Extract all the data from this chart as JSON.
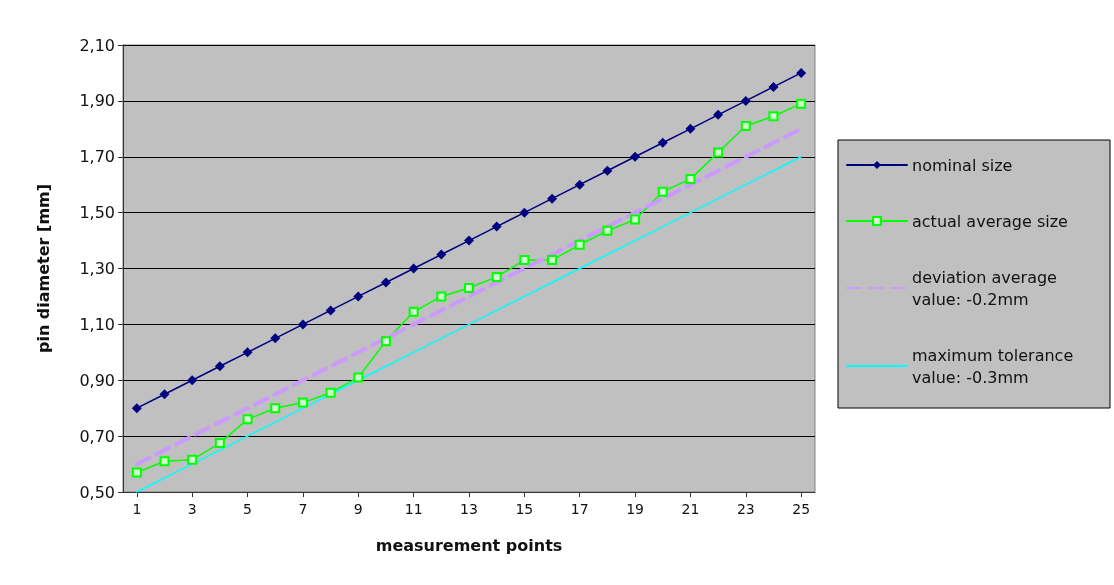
{
  "chart_data": {
    "type": "line",
    "xlabel": "measurement points",
    "ylabel": "pin diameter [mm]",
    "x": [
      1,
      2,
      3,
      4,
      5,
      6,
      7,
      8,
      9,
      10,
      11,
      12,
      13,
      14,
      15,
      16,
      17,
      18,
      19,
      20,
      21,
      22,
      23,
      24,
      25
    ],
    "xlim": [
      0.5,
      25.5
    ],
    "xticks": [
      1,
      3,
      5,
      7,
      9,
      11,
      13,
      15,
      17,
      19,
      21,
      23,
      25
    ],
    "series": [
      {
        "name": "nominal size",
        "color": "#000080",
        "marker": "diamond",
        "line_style": "solid",
        "values": [
          0.8,
          0.85,
          0.9,
          0.95,
          1.0,
          1.05,
          1.1,
          1.15,
          1.2,
          1.25,
          1.3,
          1.35,
          1.4,
          1.45,
          1.5,
          1.55,
          1.6,
          1.65,
          1.7,
          1.75,
          1.8,
          1.85,
          1.9,
          1.95,
          2.0
        ]
      },
      {
        "name": "actual average size",
        "color": "#00ff00",
        "marker": "square",
        "line_style": "solid",
        "values": [
          0.57,
          0.61,
          0.615,
          0.675,
          0.76,
          0.8,
          0.82,
          0.855,
          0.91,
          1.04,
          1.145,
          1.2,
          1.23,
          1.27,
          1.33,
          1.33,
          1.385,
          1.435,
          1.475,
          1.575,
          1.62,
          1.715,
          1.81,
          1.845,
          1.89
        ]
      },
      {
        "name": "deviation average value: -0.2mm",
        "color": "#cc99ff",
        "marker": "none",
        "line_style": "dashed",
        "values": [
          0.6,
          0.65,
          0.7,
          0.75,
          0.8,
          0.85,
          0.9,
          0.95,
          1.0,
          1.05,
          1.1,
          1.15,
          1.2,
          1.25,
          1.3,
          1.35,
          1.4,
          1.45,
          1.5,
          1.55,
          1.6,
          1.65,
          1.7,
          1.75,
          1.8
        ]
      },
      {
        "name": "maximum tolerance value: -0.3mm",
        "color": "#00ffff",
        "marker": "none",
        "line_style": "solid",
        "values": [
          0.5,
          0.55,
          0.6,
          0.65,
          0.7,
          0.75,
          0.8,
          0.85,
          0.9,
          0.95,
          1.0,
          1.05,
          1.1,
          1.15,
          1.2,
          1.25,
          1.3,
          1.35,
          1.4,
          1.45,
          1.5,
          1.55,
          1.6,
          1.65,
          1.7
        ]
      }
    ],
    "ylim": [
      0.5,
      2.1
    ],
    "yticks": [
      {
        "value": 0.5,
        "label": "0,50"
      },
      {
        "value": 0.7,
        "label": "0,70"
      },
      {
        "value": 0.9,
        "label": "0,90"
      },
      {
        "value": 1.1,
        "label": "1,10"
      },
      {
        "value": 1.3,
        "label": "1,30"
      },
      {
        "value": 1.5,
        "label": "1,50"
      },
      {
        "value": 1.7,
        "label": "1,70"
      },
      {
        "value": 1.9,
        "label": "1,90"
      },
      {
        "value": 2.1,
        "label": "2,10"
      }
    ],
    "grid": "y",
    "legend": "right"
  }
}
